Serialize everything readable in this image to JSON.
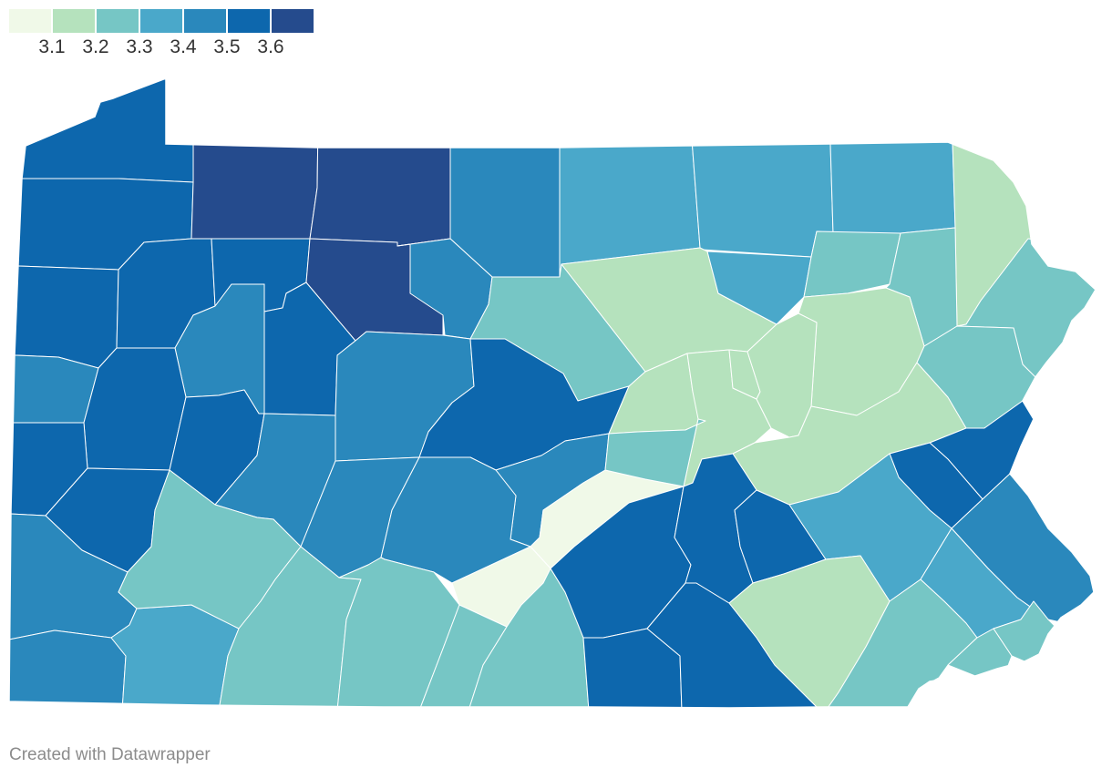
{
  "legend": {
    "colors": [
      "#f0f9e8",
      "#b5e2bd",
      "#76c6c5",
      "#4aa8ca",
      "#2a88bc",
      "#0d67ad",
      "#254b8d"
    ],
    "ticks": [
      "3.1",
      "3.2",
      "3.3",
      "3.4",
      "3.5",
      "3.6"
    ]
  },
  "credit": "Created with Datawrapper",
  "regions": [
    {
      "level": 6
    },
    {
      "level": 6
    },
    {
      "level": 7
    },
    {
      "level": 7
    },
    {
      "level": 5
    },
    {
      "level": 4
    },
    {
      "level": 4
    },
    {
      "level": 4
    },
    {
      "level": 2
    },
    {
      "level": 6
    },
    {
      "level": 6
    },
    {
      "level": 6
    },
    {
      "level": 5
    },
    {
      "level": 6
    },
    {
      "level": 7
    },
    {
      "level": 5
    },
    {
      "level": 3
    },
    {
      "level": 2
    },
    {
      "level": 4
    },
    {
      "level": 3
    },
    {
      "level": 3
    },
    {
      "level": 2
    },
    {
      "level": 3
    },
    {
      "level": 5
    },
    {
      "level": 6
    },
    {
      "level": 6
    },
    {
      "level": 5
    },
    {
      "level": 5
    },
    {
      "level": 6
    },
    {
      "level": 5
    },
    {
      "level": 5
    },
    {
      "level": 5
    },
    {
      "level": 1
    },
    {
      "level": 1
    },
    {
      "level": 2
    },
    {
      "level": 2
    },
    {
      "level": 3
    },
    {
      "level": 2
    },
    {
      "level": 2
    },
    {
      "level": 2
    },
    {
      "level": 3
    },
    {
      "level": 6
    },
    {
      "level": 6
    },
    {
      "level": 5
    },
    {
      "level": 6
    },
    {
      "level": 6
    },
    {
      "level": 5
    },
    {
      "level": 5
    },
    {
      "level": 4
    },
    {
      "level": 3
    },
    {
      "level": 3
    },
    {
      "level": 3
    },
    {
      "level": 3
    },
    {
      "level": 3
    },
    {
      "level": 6
    },
    {
      "level": 6
    },
    {
      "level": 6
    },
    {
      "level": 6
    },
    {
      "level": 6
    },
    {
      "level": 4
    },
    {
      "level": 2
    },
    {
      "level": 3
    },
    {
      "level": 4
    },
    {
      "level": 3
    },
    {
      "level": 3
    },
    {
      "level": 3
    },
    {
      "level": 4
    }
  ]
}
